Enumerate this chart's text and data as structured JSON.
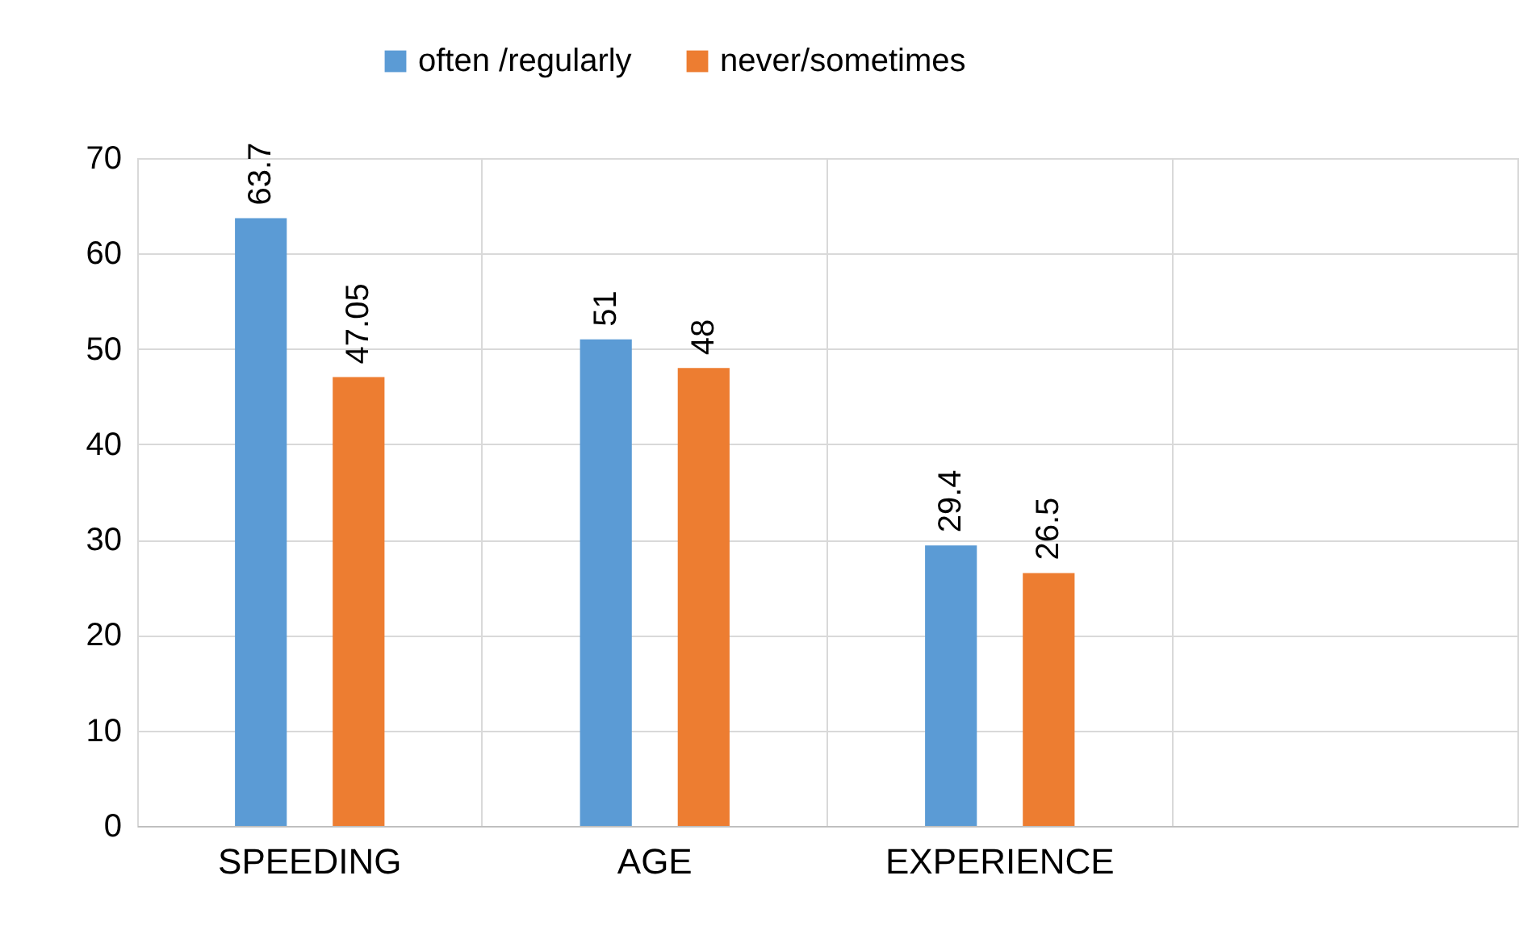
{
  "chart_data": {
    "type": "bar",
    "categories": [
      "SPEEDING",
      "AGE",
      "EXPERIENCE",
      null
    ],
    "series": [
      {
        "name": "often /regularly",
        "color": "#5b9bd5",
        "values": [
          63.7,
          51,
          29.4,
          null
        ]
      },
      {
        "name": "never/sometimes",
        "color": "#ed7d31",
        "values": [
          47.05,
          48,
          26.5,
          null
        ]
      }
    ],
    "ylim": [
      0,
      70
    ],
    "yticks": [
      0,
      10,
      20,
      30,
      40,
      50,
      60,
      70
    ],
    "grid": true,
    "legend": "top",
    "data_labels": true
  }
}
